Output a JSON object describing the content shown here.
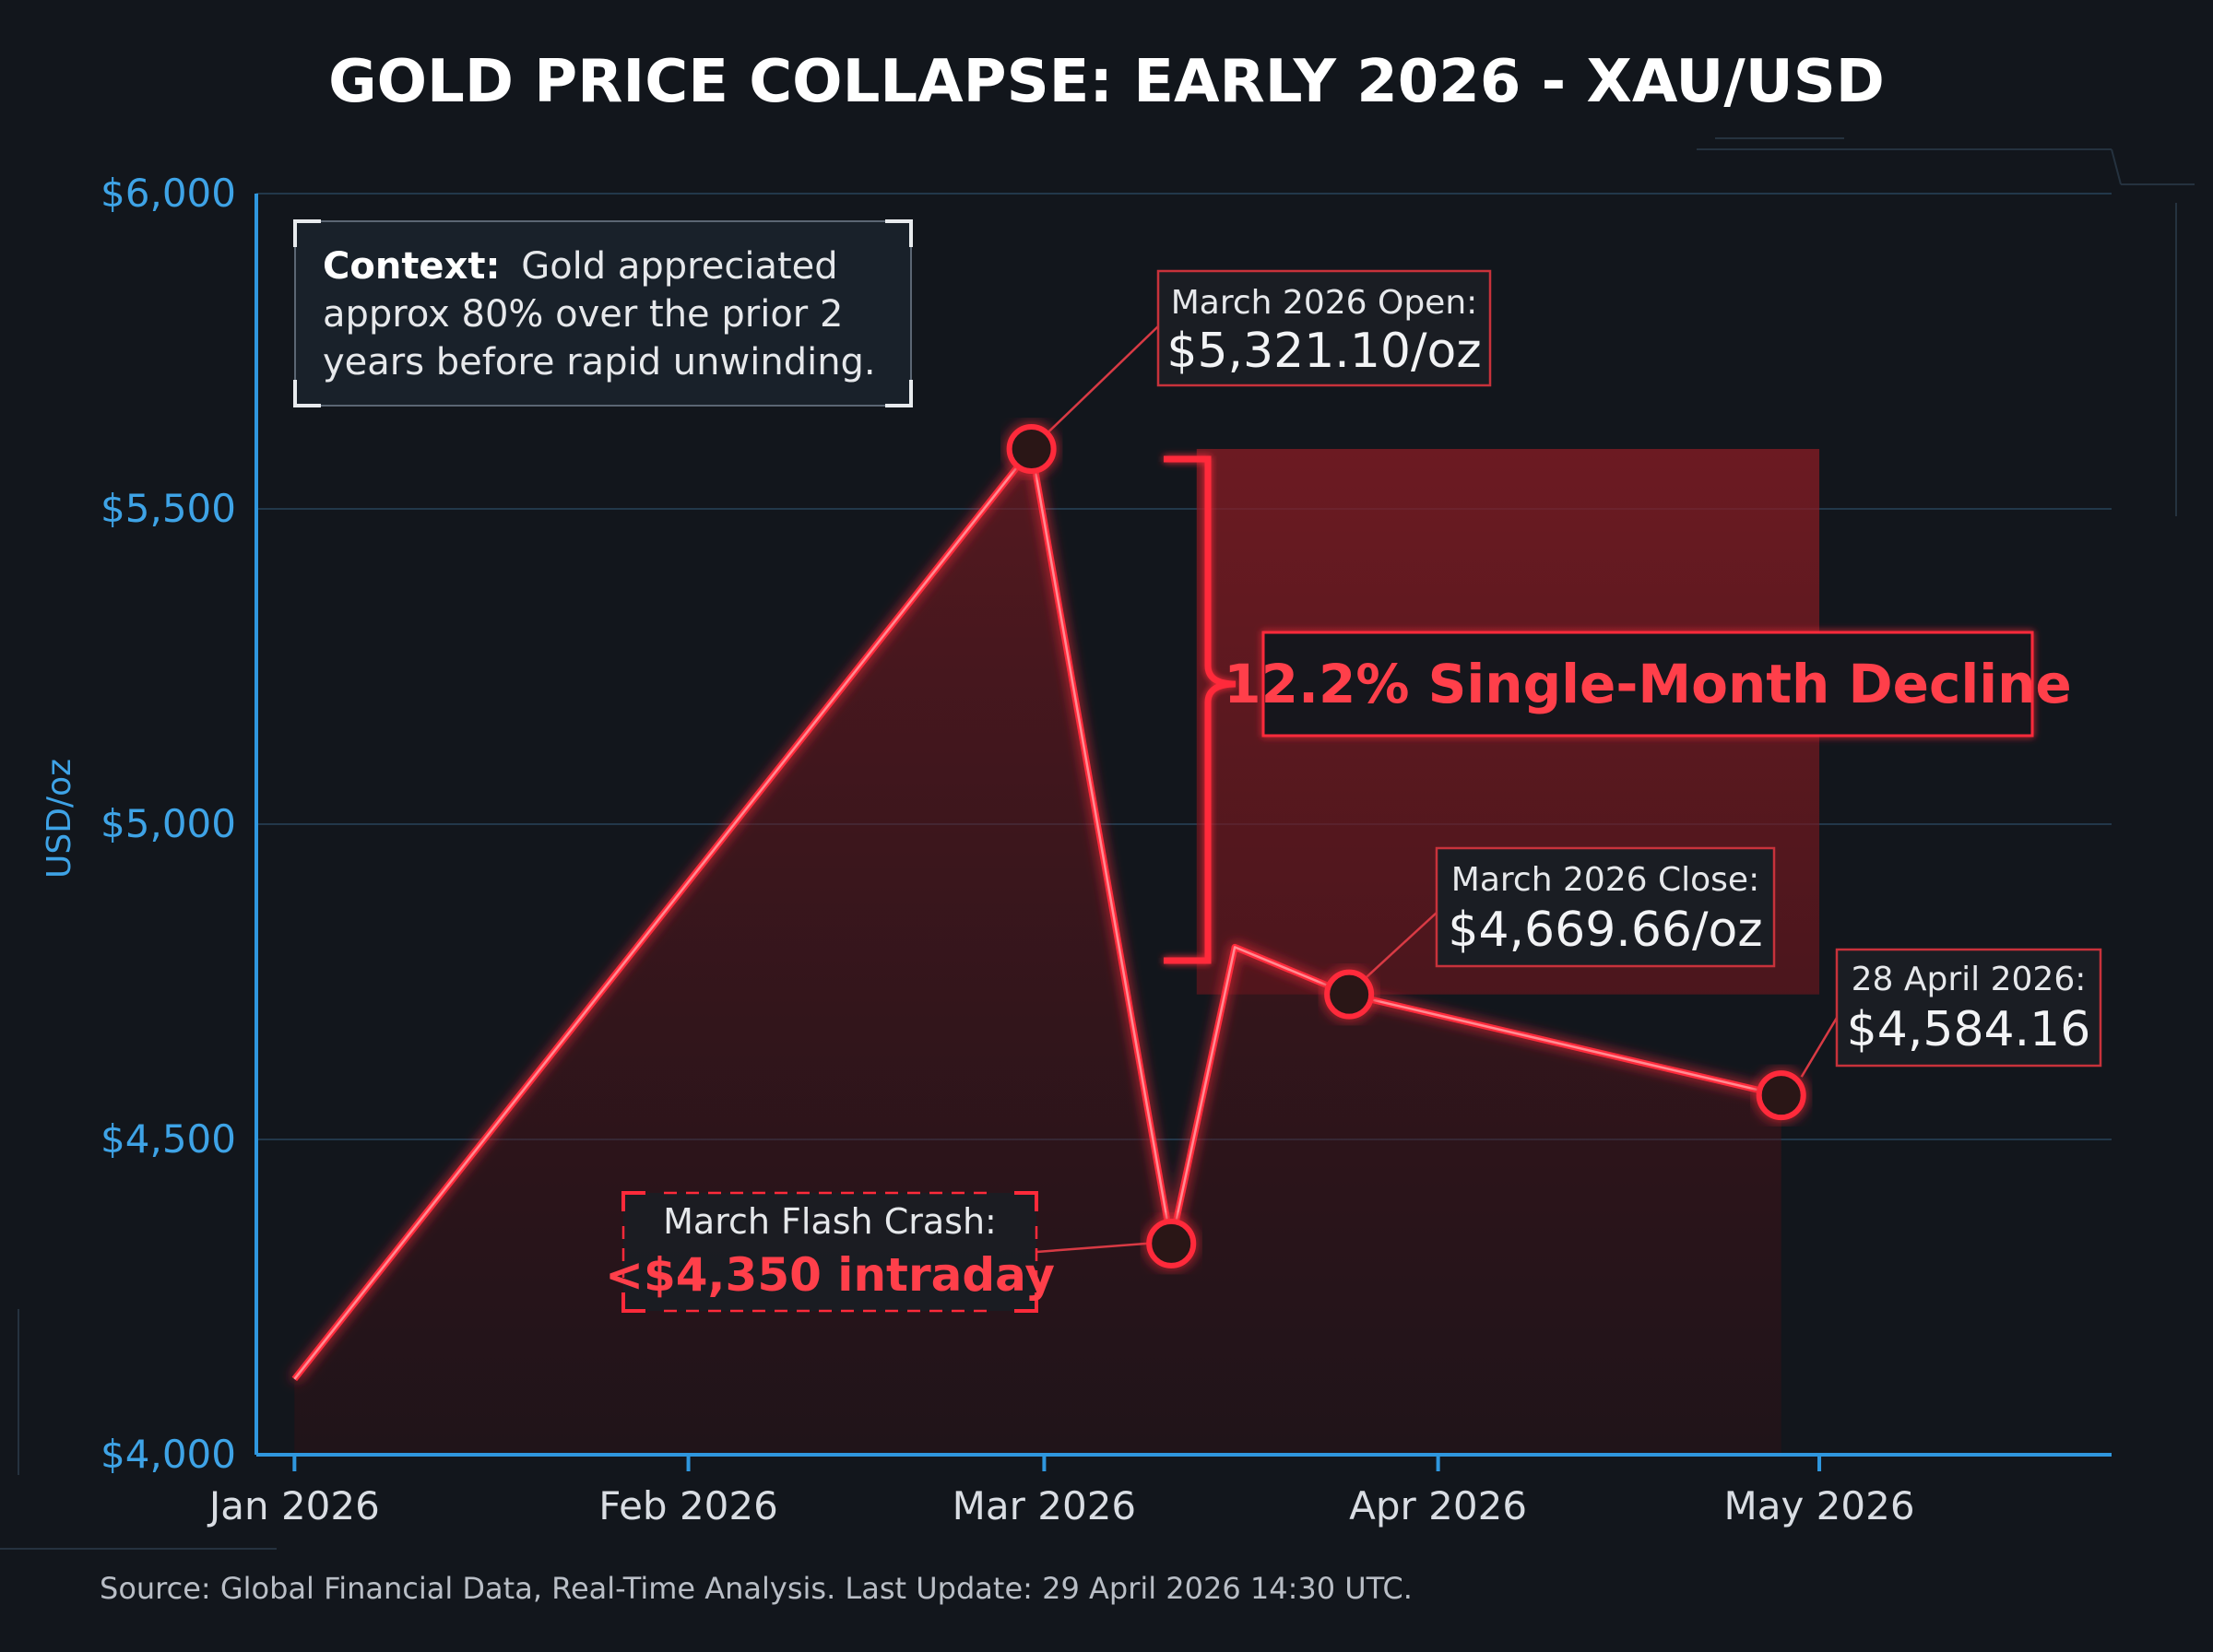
{
  "chart_data": {
    "type": "line",
    "title": "GOLD PRICE COLLAPSE: EARLY 2026 - XAU/USD",
    "ylabel": "USD/oz",
    "xlabel": "",
    "ylim": [
      4000,
      6000
    ],
    "yticks": [
      {
        "value": 4000,
        "label": "$4,000"
      },
      {
        "value": 4500,
        "label": "$4,500"
      },
      {
        "value": 5000,
        "label": "$5,000"
      },
      {
        "value": 5500,
        "label": "$5,500"
      },
      {
        "value": 6000,
        "label": "$6,000"
      }
    ],
    "xlim": [
      "2025-12-29",
      "2026-05-24"
    ],
    "xticks": [
      {
        "date": "2026-01-01",
        "label": "Jan 2026"
      },
      {
        "date": "2026-02-01",
        "label": "Feb 2026"
      },
      {
        "date": "2026-03-01",
        "label": "Mar 2026"
      },
      {
        "date": "2026-04-01",
        "label": "Apr 2026"
      },
      {
        "date": "2026-05-01",
        "label": "May 2026"
      }
    ],
    "grid": true,
    "series": [
      {
        "color": "#ff2a3a",
        "points": [
          {
            "date": "2026-01-01",
            "value": 4120
          },
          {
            "date": "2026-02-28",
            "value": 5595,
            "marker": true
          },
          {
            "date": "2026-03-11",
            "value": 4335,
            "marker": true
          },
          {
            "date": "2026-03-16",
            "value": 4805
          },
          {
            "date": "2026-03-25",
            "value": 4730,
            "marker": true
          },
          {
            "date": "2026-04-28",
            "value": 4570,
            "marker": true
          }
        ]
      }
    ],
    "annotations": {
      "context": {
        "bold": "Context:",
        "lines": [
          "Gold appreciated",
          "approx 80% over the prior 2",
          "years before rapid unwinding."
        ]
      },
      "march_open": {
        "label": "March 2026 Open:",
        "value": "$5,321.10/oz"
      },
      "decline": {
        "label": "12.2% Single-Month Decline"
      },
      "march_close": {
        "label": "March 2026 Close:",
        "value": "$4,669.66/oz"
      },
      "april_28": {
        "label": "28 April 2026:",
        "value": "$4,584.16"
      },
      "flash_crash": {
        "label": "March Flash Crash:",
        "value": "<$4,350 intraday"
      }
    },
    "decline_zone": {
      "date_start": "2026-03-13",
      "date_end": "2026-05-01",
      "top": 5595,
      "bottom": 4730
    },
    "source": "Source: Global Financial Data, Real-Time Analysis. Last Update: 29 April 2026 14:30 UTC."
  },
  "colors": {
    "accent": "#ff2a3a",
    "axis": "#2f97de",
    "background": "#12161c"
  }
}
